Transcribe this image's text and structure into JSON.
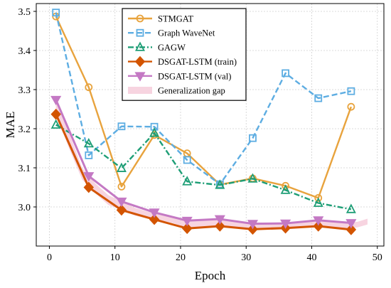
{
  "chart_data": {
    "type": "line",
    "xlabel": "Epoch",
    "ylabel": "MAE",
    "xlim": [
      -2,
      51
    ],
    "ylim": [
      2.9,
      3.52
    ],
    "x_ticks": [
      0,
      10,
      20,
      30,
      40,
      50
    ],
    "y_ticks": [
      3.0,
      3.1,
      3.2,
      3.3,
      3.4,
      3.5
    ],
    "x_tick_labels": [
      "0",
      "10",
      "20",
      "30",
      "40",
      "50"
    ],
    "y_tick_labels": [
      "3.0",
      "3.1",
      "3.2",
      "3.3",
      "3.4",
      "3.5"
    ],
    "grid": true,
    "legend_position": "top-center",
    "series": [
      {
        "name": "STMGAT",
        "color": "#E8A33D",
        "marker": "circle",
        "dash": "solid",
        "x": [
          1,
          6,
          11,
          16,
          21,
          26,
          31,
          36,
          41,
          46
        ],
        "values": [
          3.487,
          3.306,
          3.052,
          3.184,
          3.137,
          3.057,
          3.073,
          3.054,
          3.023,
          3.256
        ]
      },
      {
        "name": "Graph WaveNet",
        "color": "#5DADE2",
        "marker": "square",
        "dash": "dashed",
        "x": [
          1,
          6,
          11,
          16,
          21,
          26,
          31,
          36,
          41,
          46
        ],
        "values": [
          3.497,
          3.132,
          3.206,
          3.205,
          3.12,
          3.058,
          3.176,
          3.342,
          3.278,
          3.296
        ]
      },
      {
        "name": "GAGW",
        "color": "#1E9E76",
        "marker": "triangle",
        "dash": "dashdot",
        "x": [
          1,
          6,
          11,
          16,
          21,
          26,
          31,
          36,
          41,
          46
        ],
        "values": [
          3.21,
          3.162,
          3.099,
          3.189,
          3.065,
          3.056,
          3.072,
          3.043,
          3.01,
          2.994
        ]
      },
      {
        "name": "DSGAT-LSTM (train)",
        "color": "#D35400",
        "marker": "diamond",
        "dash": "solid",
        "x": [
          1,
          6,
          11,
          16,
          21,
          26,
          31,
          36,
          41,
          46
        ],
        "values": [
          3.237,
          3.05,
          2.992,
          2.968,
          2.945,
          2.951,
          2.943,
          2.946,
          2.951,
          2.942
        ]
      },
      {
        "name": "DSGAT-LSTM (val)",
        "color": "#C479C4",
        "marker": "triangle-down",
        "dash": "solid",
        "x": [
          1,
          6,
          11,
          16,
          21,
          26,
          31,
          36,
          41,
          46
        ],
        "values": [
          3.274,
          3.079,
          3.014,
          2.986,
          2.965,
          2.969,
          2.957,
          2.958,
          2.966,
          2.959
        ]
      }
    ],
    "gap_band": {
      "name": "Generalization gap",
      "color": "#F4C6D6",
      "x": [
        1,
        3,
        5,
        7,
        9,
        11,
        13,
        15,
        17,
        19,
        21,
        23,
        25,
        27,
        29,
        31,
        33,
        35,
        37,
        39,
        41,
        43,
        45,
        47,
        48.5
      ],
      "lower": [
        3.237,
        3.15,
        3.07,
        3.035,
        3.005,
        2.992,
        2.978,
        2.97,
        2.966,
        2.958,
        2.945,
        2.948,
        2.952,
        2.948,
        2.944,
        2.943,
        2.944,
        2.946,
        2.948,
        2.95,
        2.951,
        2.946,
        2.942,
        2.948,
        2.955
      ],
      "upper": [
        3.274,
        3.19,
        3.1,
        3.06,
        3.03,
        3.014,
        2.998,
        2.988,
        2.984,
        2.972,
        2.965,
        2.968,
        2.97,
        2.965,
        2.96,
        2.957,
        2.958,
        2.958,
        2.962,
        2.964,
        2.966,
        2.962,
        2.959,
        2.962,
        2.97
      ]
    }
  }
}
